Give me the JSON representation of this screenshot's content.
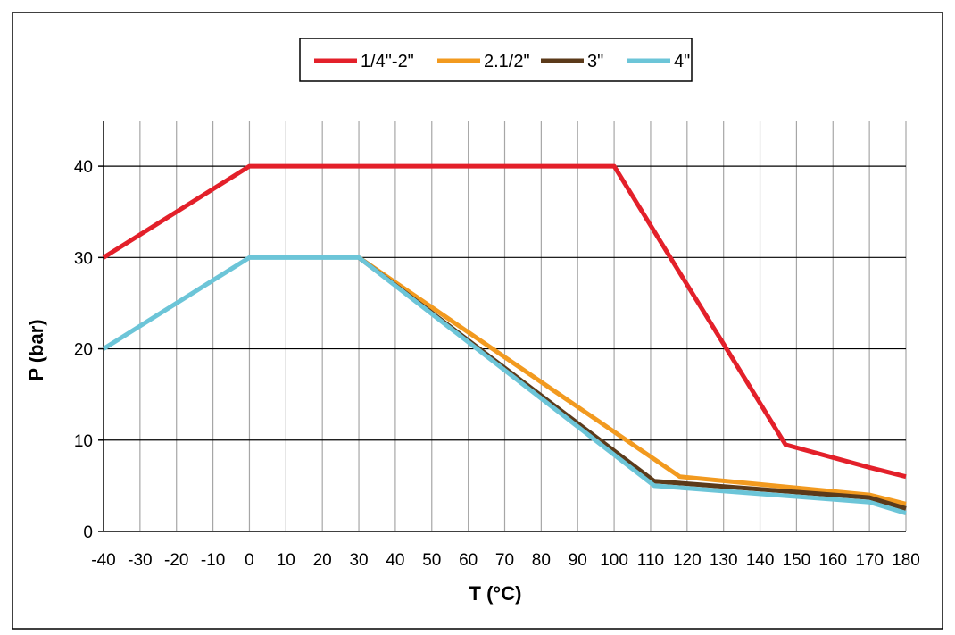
{
  "chart_data": {
    "type": "line",
    "title": "",
    "xlabel": "T (°C)",
    "ylabel": "P (bar)",
    "xlim": [
      -40,
      180
    ],
    "ylim": [
      0,
      45
    ],
    "x_ticks": [
      -40,
      -30,
      -20,
      -10,
      0,
      10,
      20,
      30,
      40,
      50,
      60,
      70,
      80,
      90,
      100,
      110,
      120,
      130,
      140,
      150,
      160,
      170,
      180
    ],
    "y_ticks": [
      0,
      10,
      20,
      30,
      40
    ],
    "grid": true,
    "legend_position": "top-center",
    "series": [
      {
        "name": "1/4\"-2\"",
        "color": "#e3202a",
        "x": [
          -40,
          0,
          100,
          147,
          170,
          180
        ],
        "y": [
          30,
          40,
          40,
          9.5,
          7,
          6
        ]
      },
      {
        "name": "2.1/2\"",
        "color": "#f29a1f",
        "x": [
          30,
          118,
          170,
          180
        ],
        "y": [
          30,
          6,
          4,
          3
        ]
      },
      {
        "name": "3\"",
        "color": "#5b3a1a",
        "x": [
          30,
          111,
          170,
          180
        ],
        "y": [
          30,
          5.5,
          3.7,
          2.5
        ]
      },
      {
        "name": "4\"",
        "color": "#6cc5d8",
        "x": [
          -40,
          0,
          30,
          111,
          170,
          180
        ],
        "y": [
          20,
          30,
          30,
          5,
          3.2,
          2
        ]
      }
    ]
  }
}
